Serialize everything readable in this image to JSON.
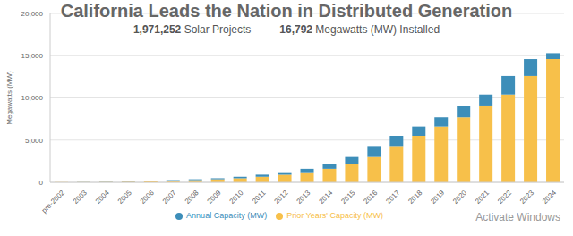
{
  "chart_data": {
    "type": "bar",
    "title": "California Leads the Nation in Distributed Generation",
    "subtitle": [
      "1,971,252 Solar Projects",
      "16,792 Megawatts (MW) Installed"
    ],
    "annotations": [
      "Activate Windows"
    ],
    "y_label": "Megawatts (MW)",
    "categories": [
      "pre-2002",
      "2003",
      "2004",
      "2005",
      "2006",
      "2007",
      "2008",
      "2009",
      "2010",
      "2011",
      "2012",
      "2013",
      "2014",
      "2015",
      "2016",
      "2017",
      "2018",
      "2019",
      "2020",
      "2021",
      "2022",
      "2023",
      "2024"
    ],
    "series": [
      {
        "name": "Annual Capacity (MW)",
        "color": "#3d8eb9",
        "values": [
          10,
          20,
          30,
          40,
          60,
          80,
          100,
          120,
          180,
          250,
          300,
          400,
          550,
          850,
          1300,
          1200,
          1100,
          1100,
          1300,
          1400,
          2200,
          2000,
          700
        ]
      },
      {
        "name": "Prior Years' Capacity (MW)",
        "color": "#f7c04a",
        "values": [
          20,
          30,
          50,
          80,
          120,
          180,
          260,
          360,
          480,
          660,
          900,
          1200,
          1600,
          2150,
          3000,
          4300,
          5500,
          6600,
          7700,
          9000,
          10400,
          12600,
          14600
        ]
      }
    ],
    "stacked": true,
    "ylim": [
      0,
      20000
    ],
    "yticks": [
      0,
      {
        "value": 5000,
        "label": "5,000"
      },
      {
        "value": 10000,
        "label": "10,000"
      },
      {
        "value": 15000,
        "label": "15,000"
      },
      {
        "value": 20000,
        "label": "20,000"
      }
    ],
    "grid": true,
    "legend": "bottom"
  }
}
